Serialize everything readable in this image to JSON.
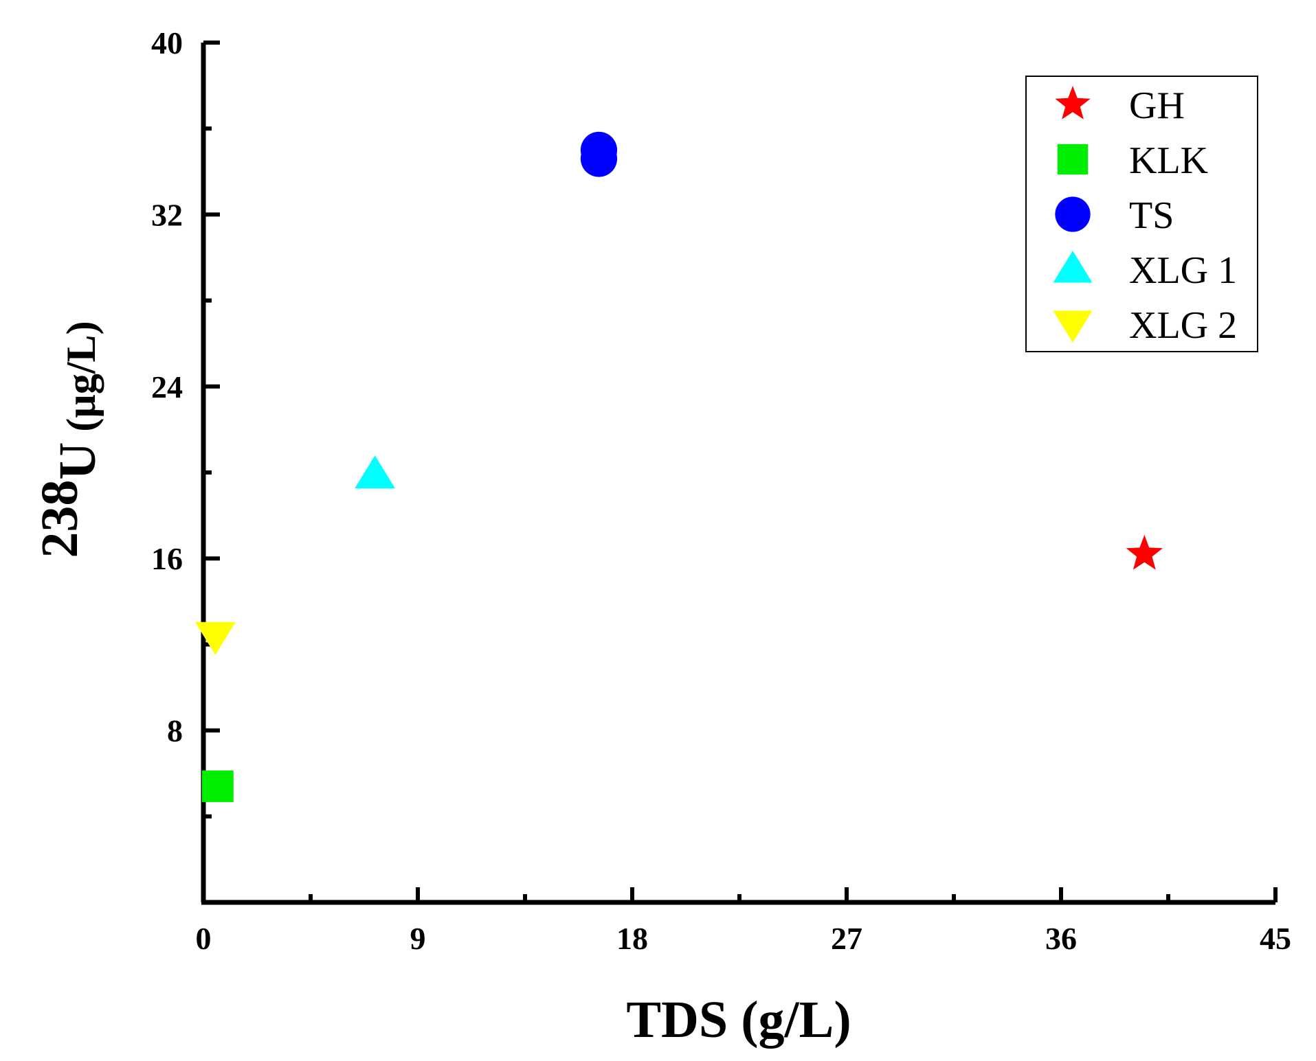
{
  "chart_data": {
    "type": "scatter",
    "title": "",
    "xlabel": "TDS (g/L)",
    "ylabel": {
      "superscript": "238",
      "element": "U",
      "unit": " (µg/L)"
    },
    "xlim": [
      0,
      45
    ],
    "ylim": [
      0,
      40
    ],
    "xticks": [
      0,
      9,
      18,
      27,
      36,
      45
    ],
    "yticks": [
      8,
      16,
      24,
      32,
      40
    ],
    "xtick_labels": [
      "0",
      "9",
      "18",
      "27",
      "36",
      "45"
    ],
    "ytick_labels": [
      "8",
      "16",
      "24",
      "32",
      "40"
    ],
    "legend_position": "top-right",
    "series": [
      {
        "name": "GH",
        "marker": "star",
        "color": "#ff0000",
        "points": [
          {
            "x": 39.5,
            "y": 16.2
          }
        ]
      },
      {
        "name": "KLK",
        "marker": "square",
        "color": "#00ee00",
        "points": [
          {
            "x": 0.6,
            "y": 5.4
          }
        ]
      },
      {
        "name": "TS",
        "marker": "circle",
        "color": "#0000ff",
        "points": [
          {
            "x": 16.6,
            "y": 34.6
          },
          {
            "x": 16.6,
            "y": 35.0
          }
        ]
      },
      {
        "name": "XLG 1",
        "marker": "triangle-up",
        "color": "#00ffff",
        "points": [
          {
            "x": 7.2,
            "y": 19.9
          }
        ]
      },
      {
        "name": "XLG 2",
        "marker": "triangle-down",
        "color": "#ffff00",
        "points": [
          {
            "x": 0.5,
            "y": 12.4
          }
        ]
      }
    ]
  }
}
